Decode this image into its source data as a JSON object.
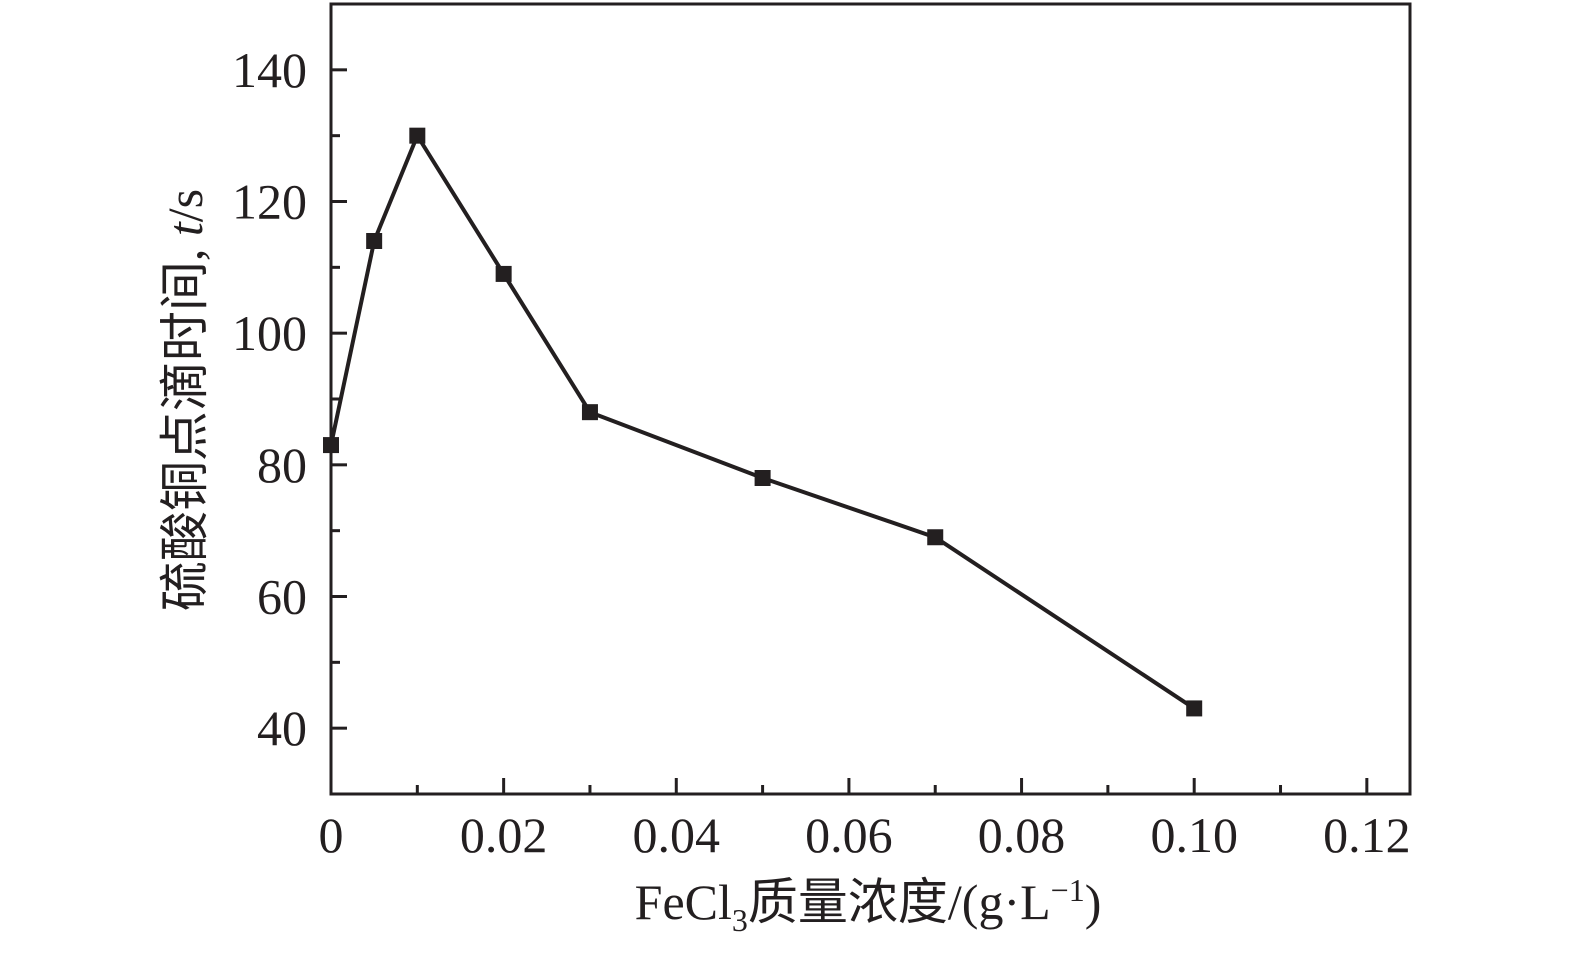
{
  "chart_data": {
    "type": "line",
    "title": "",
    "xlabel": {
      "main": "FeCl",
      "sub": "3",
      "rest": "质量浓度/(g·L",
      "sup": "−1",
      "close": ")"
    },
    "ylabel": {
      "main": "硫酸铜点滴时间, ",
      "italic": "t",
      "unit": "/s"
    },
    "xlim": [
      0,
      0.125
    ],
    "ylim": [
      30,
      150
    ],
    "x_ticks": [
      0,
      0.02,
      0.04,
      0.06,
      0.08,
      0.1,
      0.12
    ],
    "x_tick_labels": [
      "0",
      "0.02",
      "0.04",
      "0.06",
      "0.08",
      "0.10",
      "0.12"
    ],
    "y_ticks": [
      40,
      60,
      80,
      100,
      120,
      140
    ],
    "y_tick_labels": [
      "40",
      "60",
      "80",
      "100",
      "120",
      "140"
    ],
    "grid": false,
    "marker": "square",
    "series": [
      {
        "color": "#231f20",
        "x": [
          0,
          0.005,
          0.01,
          0.02,
          0.03,
          0.05,
          0.07,
          0.1
        ],
        "y": [
          83,
          114,
          130,
          109,
          88,
          78,
          69,
          43
        ]
      }
    ]
  }
}
